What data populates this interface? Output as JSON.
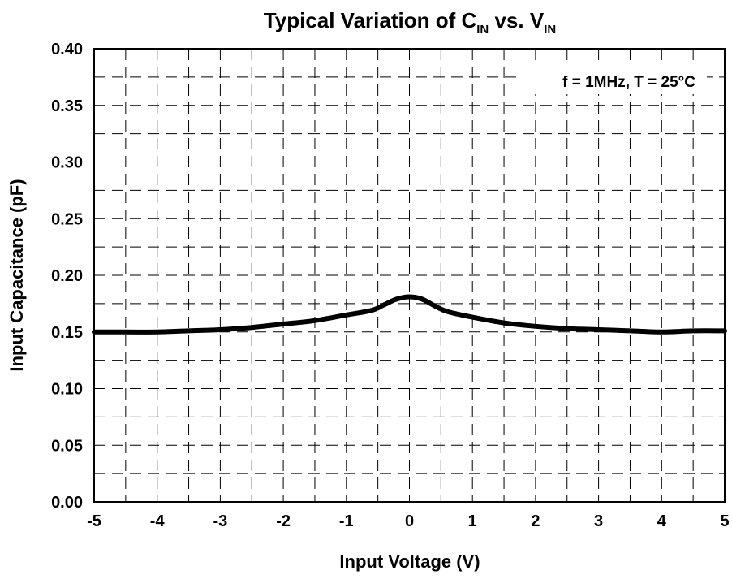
{
  "chart_data": {
    "type": "line",
    "title": {
      "prefix": "Typical Variation of C",
      "sub1": "IN",
      "middle": " vs. V",
      "sub2": "IN"
    },
    "xlabel": "Input Voltage (V)",
    "ylabel": "Input Capacitance (pF)",
    "annotation": "f = 1MHz, T = 25°C",
    "xlim": [
      -5,
      5
    ],
    "ylim": [
      0,
      0.4
    ],
    "x_ticks": [
      "-5",
      "-4",
      "-3",
      "-2",
      "-1",
      "0",
      "1",
      "2",
      "3",
      "4",
      "5"
    ],
    "y_ticks": [
      "0.00",
      "0.05",
      "0.10",
      "0.15",
      "0.20",
      "0.25",
      "0.30",
      "0.35",
      "0.40"
    ],
    "grid": true,
    "series": [
      {
        "color": "#000000",
        "x": [
          -5,
          -4.5,
          -4,
          -3.5,
          -3,
          -2.5,
          -2,
          -1.5,
          -1,
          -0.6,
          -0.4,
          -0.2,
          0,
          0.2,
          0.4,
          0.6,
          1,
          1.5,
          2,
          2.5,
          3,
          3.5,
          4,
          4.5,
          5
        ],
        "y": [
          0.15,
          0.15,
          0.15,
          0.151,
          0.152,
          0.154,
          0.157,
          0.16,
          0.165,
          0.169,
          0.174,
          0.179,
          0.181,
          0.179,
          0.173,
          0.168,
          0.163,
          0.158,
          0.155,
          0.153,
          0.152,
          0.151,
          0.15,
          0.151,
          0.151
        ]
      }
    ]
  }
}
